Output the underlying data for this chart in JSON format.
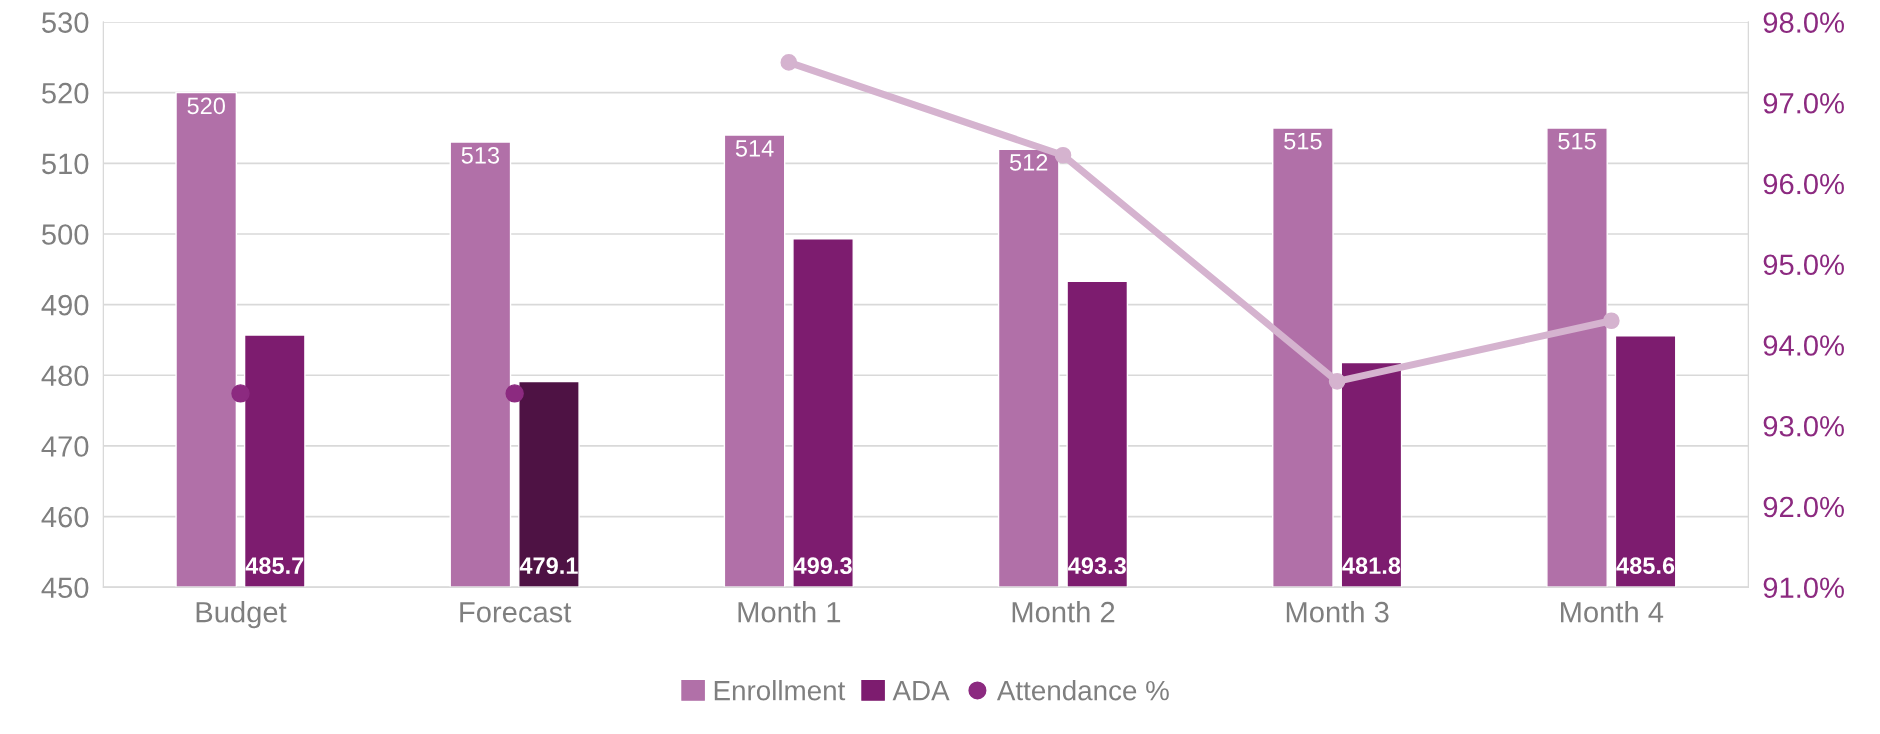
{
  "chart_data": {
    "type": "bar",
    "categories": [
      "Budget",
      "Forecast",
      "Month 1",
      "Month 2",
      "Month 3",
      "Month 4"
    ],
    "series": [
      {
        "name": "Enrollment",
        "color": "#b170a8",
        "values": [
          520,
          513,
          514,
          512,
          515,
          515
        ],
        "value_labels": [
          "520",
          "513",
          "514",
          "512",
          "515",
          "515"
        ]
      },
      {
        "name": "ADA",
        "color": "#7d1c6f",
        "colors": [
          "#7d1c6f",
          "#4e1244",
          "#7d1c6f",
          "#7d1c6f",
          "#7d1c6f",
          "#7d1c6f"
        ],
        "values": [
          485.7,
          479.1,
          499.3,
          493.3,
          481.8,
          485.6
        ],
        "value_labels": [
          "485.7",
          "479.1",
          "499.3",
          "493.3",
          "481.8",
          "485.6"
        ]
      },
      {
        "name": "Attendance %",
        "type": "scatter",
        "axis": "y2",
        "color": "#8c2a80",
        "marker": "circle",
        "values": [
          93.4,
          93.4,
          null,
          null,
          null,
          null
        ]
      },
      {
        "type": "line",
        "axis": "y2",
        "color": "#d5b3cf",
        "marker": "circle",
        "values": [
          null,
          null,
          97.5,
          96.35,
          93.55,
          94.3
        ]
      }
    ],
    "ylim": [
      450,
      530
    ],
    "yticks": [
      450,
      460,
      470,
      480,
      490,
      500,
      510,
      520,
      530
    ],
    "y2lim": [
      91,
      98
    ],
    "y2ticks": [
      {
        "value": 91,
        "label": "91.0%"
      },
      {
        "value": 92,
        "label": "92.0%"
      },
      {
        "value": 93,
        "label": "93.0%"
      },
      {
        "value": 94,
        "label": "94.0%"
      },
      {
        "value": 95,
        "label": "95.0%"
      },
      {
        "value": 96,
        "label": "96.0%"
      },
      {
        "value": 97,
        "label": "97.0%"
      },
      {
        "value": 98,
        "label": "98.0%"
      }
    ],
    "grid": "y",
    "legend": "bottom"
  }
}
